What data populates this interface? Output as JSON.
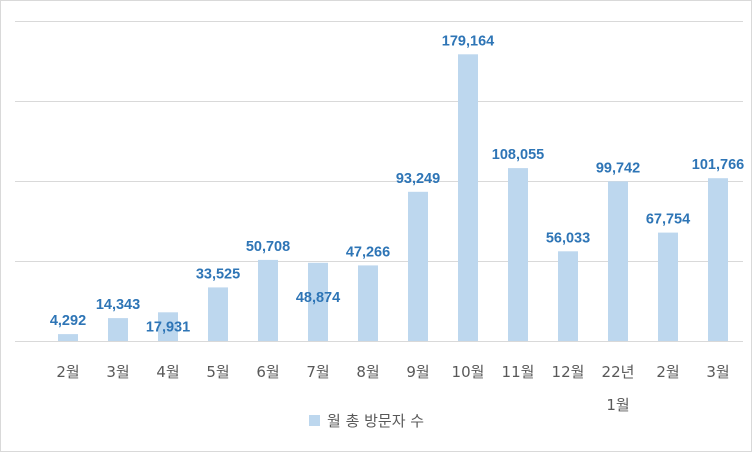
{
  "chart_data": {
    "type": "bar",
    "categories": [
      [
        "2월"
      ],
      [
        "3월"
      ],
      [
        "4월"
      ],
      [
        "5월"
      ],
      [
        "6월"
      ],
      [
        "7월"
      ],
      [
        "8월"
      ],
      [
        "9월"
      ],
      [
        "10월"
      ],
      [
        "11월"
      ],
      [
        "12월"
      ],
      [
        "22년",
        "1월"
      ],
      [
        "2월"
      ],
      [
        "3월"
      ]
    ],
    "series": [
      {
        "name": "월 총 방문자 수",
        "values": [
          4292,
          14343,
          17931,
          33525,
          50708,
          48874,
          47266,
          93249,
          179164,
          108055,
          56033,
          99742,
          67754,
          101766
        ],
        "labels": [
          "4,292",
          "14,343",
          "17,931",
          "33,525",
          "50,708",
          "48,874",
          "47,266",
          "93,249",
          "179,164",
          "108,055",
          "56,033",
          "99,742",
          "67,754",
          "101,766"
        ],
        "color": "#bdd7ee"
      }
    ],
    "label_color": "#2e75b6",
    "ylim": [
      0,
      200000
    ],
    "y_gridlines": [
      0,
      50000,
      100000,
      150000,
      200000
    ],
    "y_tick_labels_shown": false,
    "grid": true,
    "legend": "bottom"
  }
}
